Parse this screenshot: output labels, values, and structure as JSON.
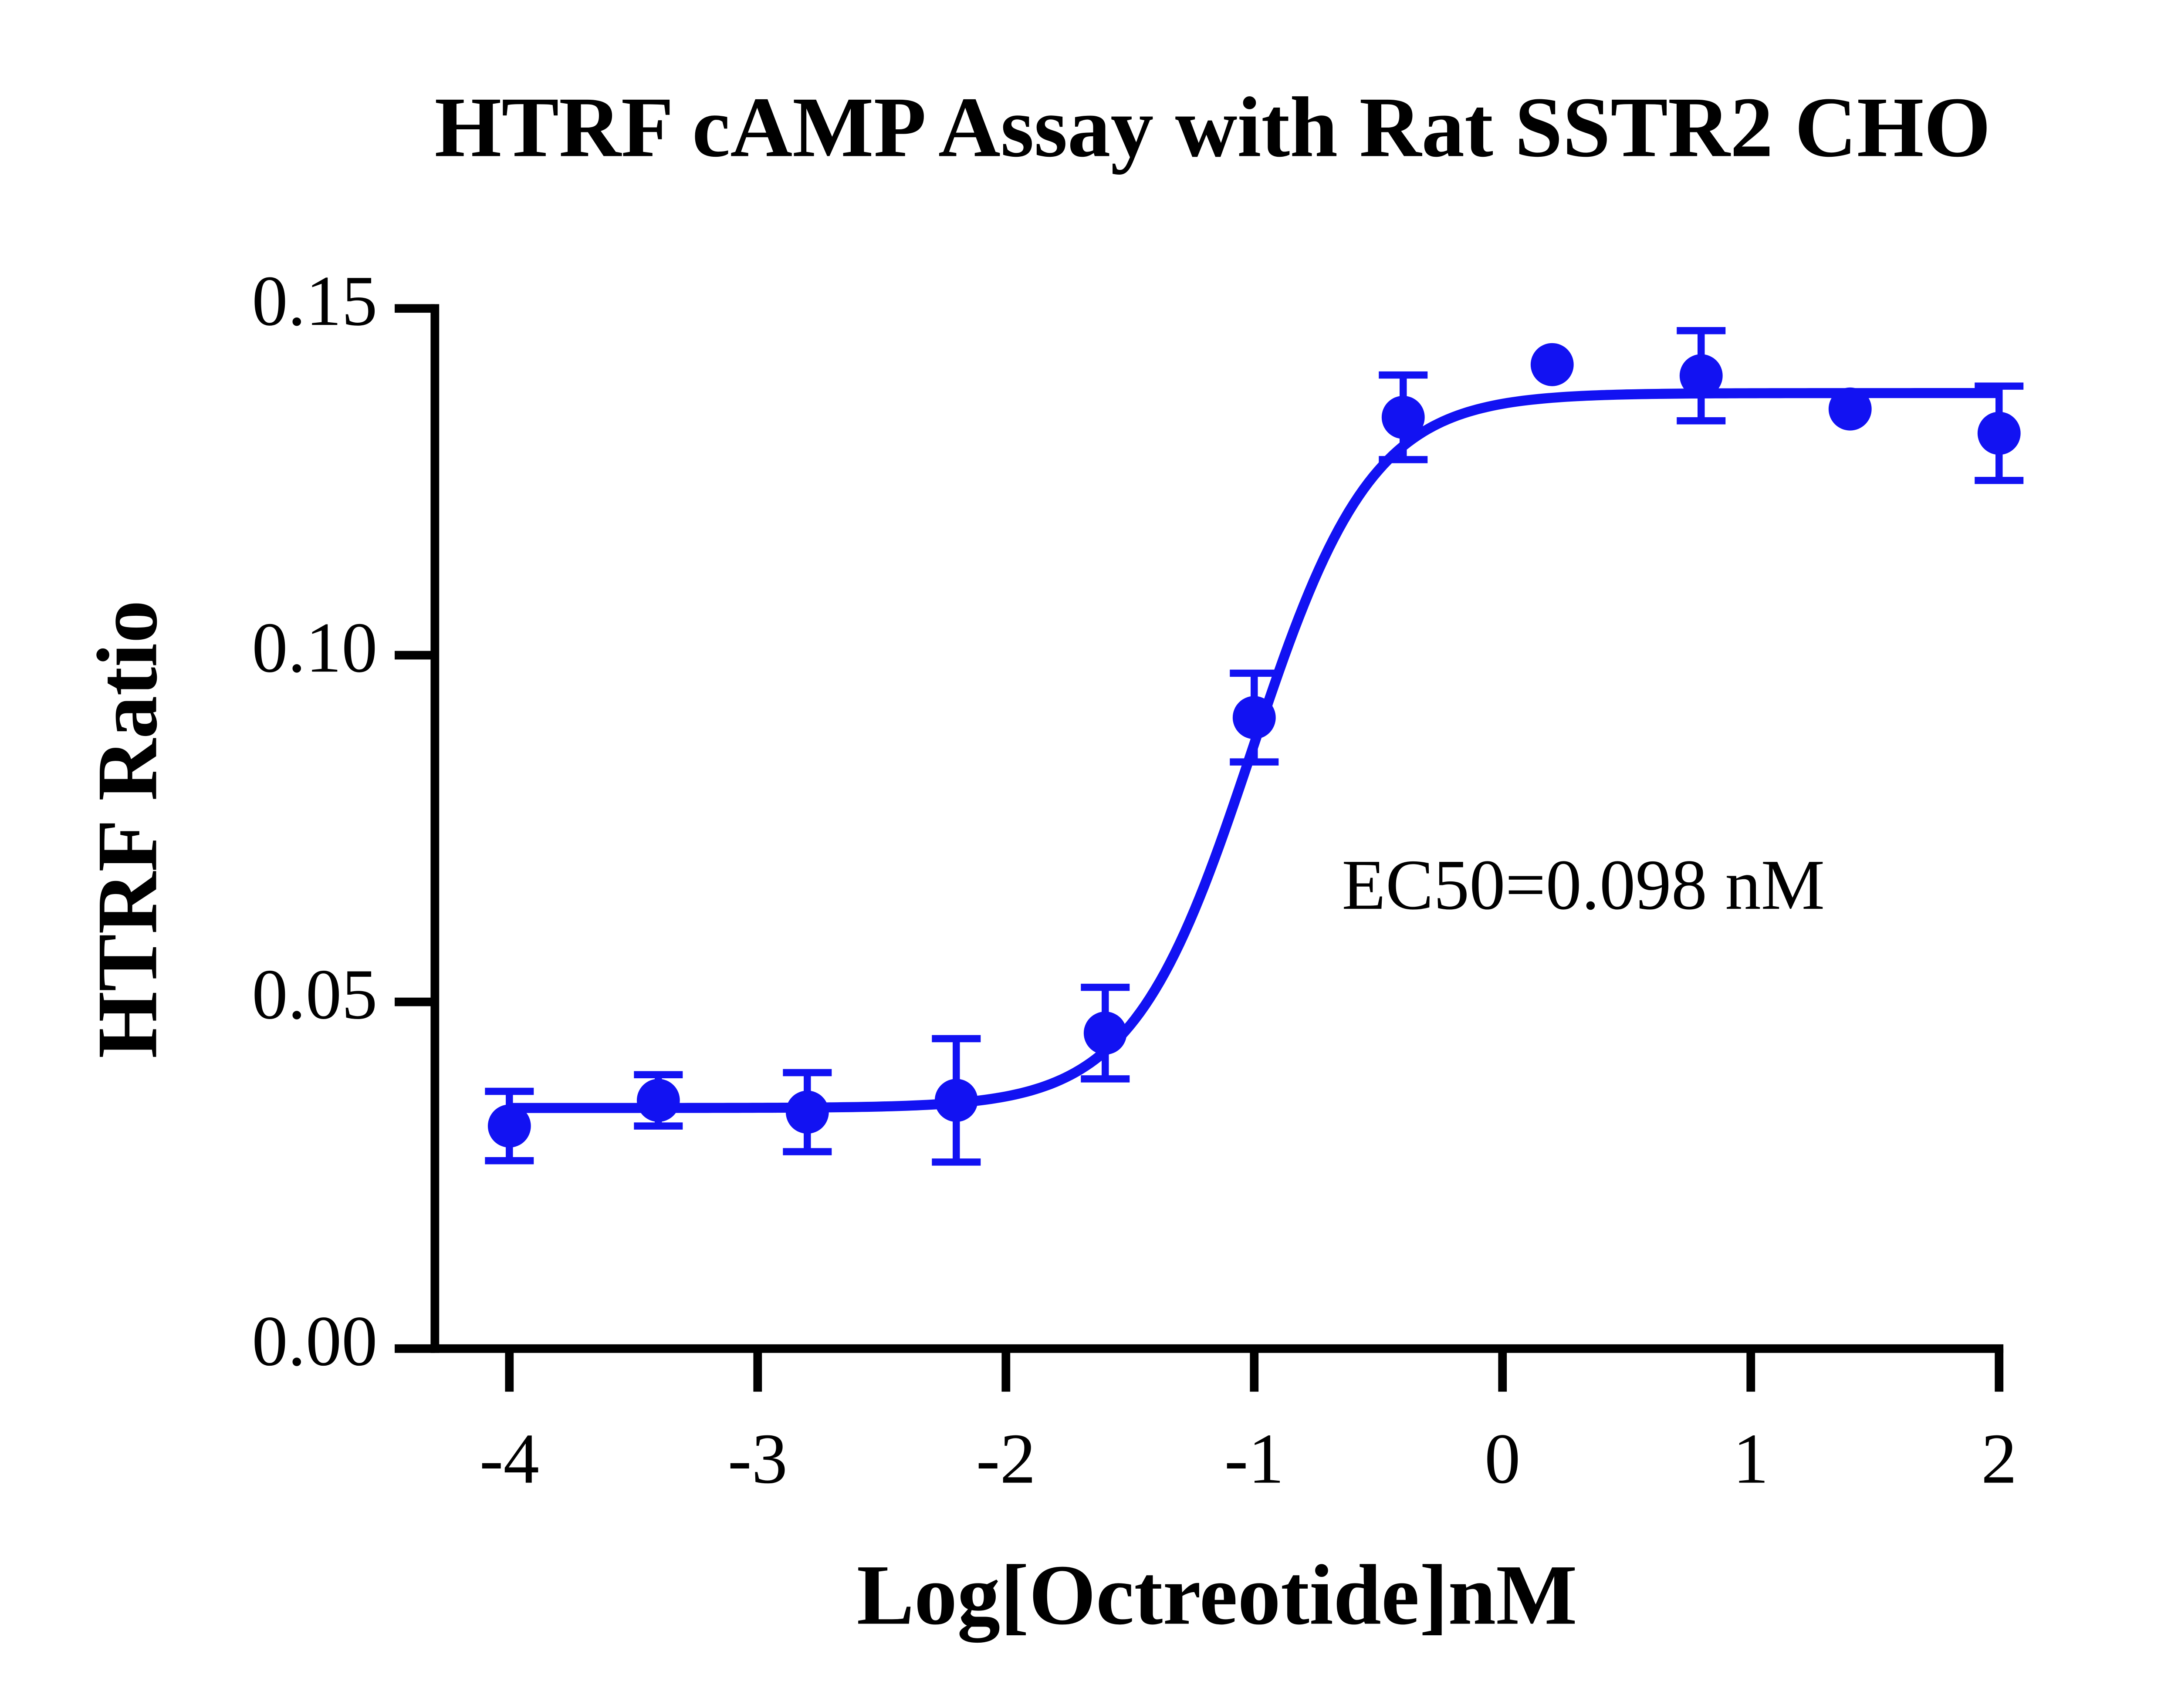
{
  "chart_data": {
    "type": "scatter",
    "title": "HTRF cAMP Assay with Rat SSTR2 CHO",
    "x_label": "Log[Octreotide]nM",
    "y_label": "HTRF Ratio",
    "annotation": "EC50=0.098 nM",
    "color": "#1212f2",
    "x": [
      -4,
      -3.4,
      -2.8,
      -2.2,
      -1.6,
      -1.0,
      -0.4,
      0.2,
      0.8,
      1.4,
      2.0
    ],
    "values": [
      0.0321,
      0.0358,
      0.0341,
      0.0358,
      0.0455,
      0.091,
      0.1343,
      0.1419,
      0.1403,
      0.1355,
      0.132
    ],
    "errors": [
      0.005,
      0.0037,
      0.0057,
      0.0089,
      0.0066,
      0.0064,
      0.0061,
      null,
      0.0065,
      null,
      0.0068
    ],
    "fit": {
      "bottom": 0.0347,
      "top": 0.1378,
      "log_ec50": -1.009,
      "hill_slope": 1.8
    },
    "xlim": [
      -4.3,
      2
    ],
    "ylim": [
      0,
      0.15
    ],
    "xticks": [
      -4,
      -3,
      -2,
      -1,
      0,
      1,
      2
    ],
    "yticks": [
      {
        "value": 0,
        "label": "0.00"
      },
      {
        "value": 0.05,
        "label": "0.05"
      },
      {
        "value": 0.1,
        "label": "0.10"
      },
      {
        "value": 0.15,
        "label": "0.15"
      }
    ]
  }
}
